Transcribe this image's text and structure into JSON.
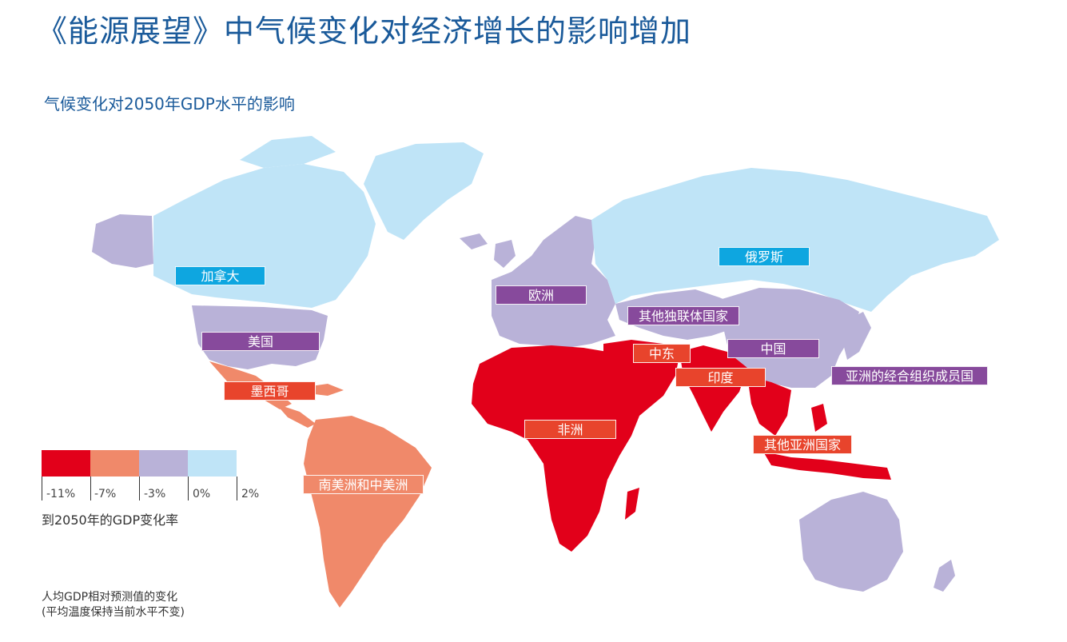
{
  "title": "《能源展望》中气候变化对经济增长的影响增加",
  "subtitle": "气候变化对2050年GDP水平的影响",
  "colors": {
    "very_negative": "#e2001a",
    "negative": "#f0896a",
    "slightly_negative": "#b9b2d8",
    "positive": "#bfe4f7",
    "label_purple": "#874a9c",
    "label_blue": "#0ea6e0",
    "label_red": "#e8442c"
  },
  "regions": [
    {
      "name": "加拿大",
      "impact_class": "positive"
    },
    {
      "name": "美国",
      "impact_class": "slightly_negative"
    },
    {
      "name": "墨西哥",
      "impact_class": "negative"
    },
    {
      "name": "南美洲和中美洲",
      "impact_class": "negative"
    },
    {
      "name": "欧洲",
      "impact_class": "slightly_negative"
    },
    {
      "name": "俄罗斯",
      "impact_class": "positive"
    },
    {
      "name": "其他独联体国家",
      "impact_class": "slightly_negative"
    },
    {
      "name": "中东",
      "impact_class": "very_negative"
    },
    {
      "name": "中国",
      "impact_class": "slightly_negative"
    },
    {
      "name": "亚洲的经合组织成员国",
      "impact_class": "slightly_negative"
    },
    {
      "name": "印度",
      "impact_class": "very_negative"
    },
    {
      "name": "非洲",
      "impact_class": "very_negative"
    },
    {
      "name": "其他亚洲国家",
      "impact_class": "very_negative"
    }
  ],
  "legend": {
    "swatches": [
      "#e2001a",
      "#f0896a",
      "#b9b2d8",
      "#bfe4f7"
    ],
    "ticks": [
      "-11%",
      "-7%",
      "-3%",
      "0%",
      "2%"
    ],
    "title": "到2050年的GDP变化率"
  },
  "note": {
    "line1": "人均GDP相对预测值的变化",
    "line2": "(平均温度保持当前水平不变)"
  }
}
